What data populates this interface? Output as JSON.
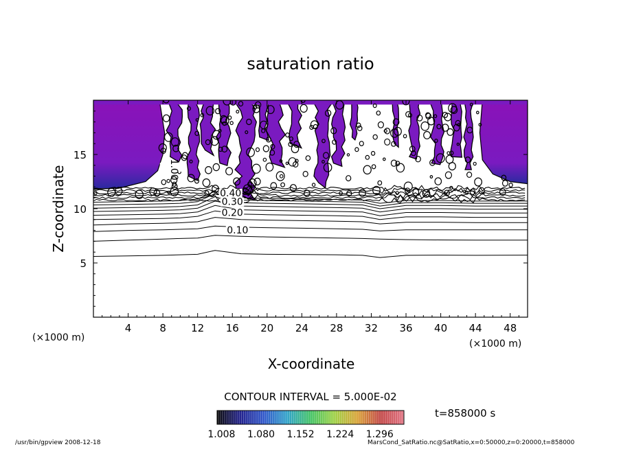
{
  "chart_data": {
    "type": "contour",
    "title": "saturation ratio",
    "xlabel": "X-coordinate",
    "ylabel": "Z-coordinate",
    "x_unit": "(×1000 m)",
    "z_unit": "(×1000 m)",
    "xlim": [
      0,
      50
    ],
    "ylim": [
      0,
      20
    ],
    "x_ticks": [
      4,
      8,
      12,
      16,
      20,
      24,
      28,
      32,
      36,
      40,
      44,
      48
    ],
    "y_ticks": [
      5,
      10,
      15
    ],
    "contour_interval_label": "CONTOUR INTERVAL = 5.000E-02",
    "time_label": "t=858000 s",
    "colorbar": {
      "min": 1.0,
      "max": 1.34,
      "tick_labels": [
        "1.008",
        "1.080",
        "1.152",
        "1.224",
        "1.296"
      ],
      "colors": [
        "#000000",
        "#1a1a8a",
        "#2a52c8",
        "#2aa0c8",
        "#3cc060",
        "#9ad040",
        "#d8a030",
        "#c04040",
        "#e07080"
      ]
    },
    "contour_labels": [
      {
        "text": "0.10",
        "x": 16.6,
        "z": 7.8
      },
      {
        "text": "0.20",
        "x": 16.0,
        "z": 9.4
      },
      {
        "text": "0.30",
        "x": 16.0,
        "z": 10.4
      },
      {
        "text": "0.40",
        "x": 15.8,
        "z": 11.2
      },
      {
        "text": "1.00",
        "x": 9.0,
        "z": 13.6
      }
    ],
    "stable_contours": [
      {
        "level": 0.05,
        "z": [
          5.6,
          5.65,
          5.7,
          5.75,
          5.8,
          6.15,
          5.85,
          5.8,
          5.78,
          5.75,
          5.7,
          5.5,
          5.7,
          5.72,
          5.7,
          5.72
        ]
      },
      {
        "level": 0.1,
        "z": [
          7.0,
          7.1,
          7.2,
          7.25,
          7.3,
          7.55,
          7.45,
          7.4,
          7.35,
          7.3,
          7.25,
          7.2,
          7.15,
          7.12,
          7.1,
          7.1
        ]
      },
      {
        "level": 0.15,
        "z": [
          7.9,
          8.0,
          8.05,
          8.1,
          8.15,
          8.4,
          8.3,
          8.25,
          8.2,
          8.15,
          8.1,
          7.95,
          8.05,
          8.05,
          8.05,
          8.05
        ]
      },
      {
        "level": 0.2,
        "z": [
          8.5,
          8.6,
          8.65,
          8.7,
          8.8,
          9.2,
          9.0,
          8.95,
          8.9,
          8.85,
          8.8,
          8.6,
          8.75,
          8.75,
          8.72,
          8.72
        ]
      },
      {
        "level": 0.25,
        "z": [
          9.0,
          9.05,
          9.1,
          9.15,
          9.3,
          9.8,
          9.5,
          9.45,
          9.4,
          9.35,
          9.3,
          9.0,
          9.25,
          9.25,
          9.2,
          9.2
        ]
      },
      {
        "level": 0.3,
        "z": [
          9.4,
          9.45,
          9.5,
          9.55,
          9.7,
          10.3,
          9.9,
          9.85,
          9.8,
          9.75,
          9.7,
          9.35,
          9.65,
          9.65,
          9.6,
          9.6
        ]
      },
      {
        "level": 0.35,
        "z": [
          9.75,
          9.8,
          9.85,
          9.9,
          10.05,
          10.7,
          10.25,
          10.2,
          10.15,
          10.1,
          10.05,
          9.7,
          10.0,
          10.0,
          9.95,
          9.95
        ]
      },
      {
        "level": 0.4,
        "z": [
          10.05,
          10.1,
          10.15,
          10.2,
          10.35,
          11.1,
          10.55,
          10.5,
          10.45,
          10.4,
          10.35,
          10.0,
          10.3,
          10.3,
          10.25,
          10.25
        ]
      },
      {
        "level": 0.45,
        "z": [
          10.35,
          10.4,
          10.45,
          10.5,
          10.65,
          11.4,
          10.8,
          10.75,
          10.7,
          10.65,
          10.6,
          10.25,
          10.55,
          10.55,
          10.5,
          10.5
        ]
      },
      {
        "level": 0.5,
        "z": [
          10.6,
          10.65,
          10.7,
          10.75,
          10.9,
          11.6,
          11.0,
          10.95,
          10.9,
          10.85,
          10.8,
          10.5,
          10.75,
          10.75,
          10.7,
          10.7
        ]
      }
    ],
    "stable_contour_x": [
      0,
      4,
      8,
      10,
      12,
      14,
      17,
      20,
      24,
      28,
      31,
      33,
      36,
      40,
      44,
      50
    ]
  },
  "footer": {
    "left": "/usr/bin/gpview   2008-12-18",
    "right": "MarsCond_SatRatio.nc@SatRatio,x=0:50000,z=0:20000,t=858000"
  }
}
